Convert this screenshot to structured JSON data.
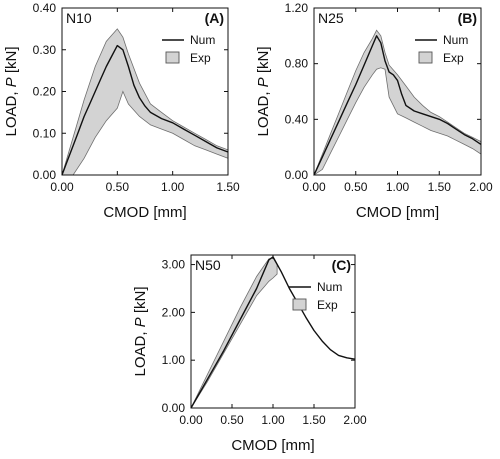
{
  "chart_data": [
    {
      "type": "line",
      "panel_label": "(A)",
      "specimen_label": "N10",
      "xlabel": "CMOD [mm]",
      "ylabel_prefix": "LOAD, ",
      "ylabel_symbol": "P",
      "ylabel_unit": " [kN]",
      "xlim": [
        0,
        1.5
      ],
      "ylim": [
        0,
        0.4
      ],
      "xticks": [
        0,
        0.5,
        1.0,
        1.5
      ],
      "xtick_labels": [
        "0.00",
        "0.50",
        "1.00",
        "1.50"
      ],
      "yticks": [
        0,
        0.1,
        0.2,
        0.3,
        0.4
      ],
      "ytick_labels": [
        "0.00",
        "0.10",
        "0.20",
        "0.30",
        "0.40"
      ],
      "legend": [
        "Num",
        "Exp"
      ],
      "legend_position": "top-right",
      "series": [
        {
          "name": "Num",
          "style": "line",
          "color": "#111111",
          "x": [
            0.0,
            0.05,
            0.1,
            0.15,
            0.2,
            0.25,
            0.3,
            0.35,
            0.4,
            0.45,
            0.5,
            0.55,
            0.6,
            0.65,
            0.7,
            0.75,
            0.8,
            0.9,
            1.0,
            1.1,
            1.2,
            1.3,
            1.4,
            1.5
          ],
          "y": [
            0.0,
            0.035,
            0.07,
            0.105,
            0.14,
            0.17,
            0.2,
            0.23,
            0.26,
            0.285,
            0.31,
            0.3,
            0.26,
            0.215,
            0.185,
            0.165,
            0.15,
            0.135,
            0.125,
            0.11,
            0.095,
            0.08,
            0.065,
            0.055
          ]
        },
        {
          "name": "Exp",
          "style": "band",
          "color": "#d3d3d3",
          "x": [
            0.0,
            0.1,
            0.2,
            0.3,
            0.4,
            0.5,
            0.55,
            0.6,
            0.7,
            0.8,
            0.9,
            1.0,
            1.1,
            1.2,
            1.3,
            1.4,
            1.5
          ],
          "upper": [
            0.0,
            0.09,
            0.18,
            0.26,
            0.32,
            0.35,
            0.33,
            0.29,
            0.22,
            0.17,
            0.15,
            0.13,
            0.115,
            0.1,
            0.085,
            0.07,
            0.06
          ],
          "lower": [
            0.0,
            0.0,
            0.04,
            0.09,
            0.13,
            0.16,
            0.2,
            0.17,
            0.14,
            0.12,
            0.11,
            0.1,
            0.085,
            0.07,
            0.06,
            0.05,
            0.04
          ]
        }
      ]
    },
    {
      "type": "line",
      "panel_label": "(B)",
      "specimen_label": "N25",
      "xlabel": "CMOD [mm]",
      "ylabel_prefix": "LOAD, ",
      "ylabel_symbol": "P",
      "ylabel_unit": " [kN]",
      "xlim": [
        0,
        2.0
      ],
      "ylim": [
        0,
        1.2
      ],
      "xticks": [
        0,
        0.5,
        1.0,
        1.5,
        2.0
      ],
      "xtick_labels": [
        "0.00",
        "0.50",
        "1.00",
        "1.50",
        "2.00"
      ],
      "yticks": [
        0,
        0.4,
        0.8,
        1.2
      ],
      "ytick_labels": [
        "0.00",
        "0.40",
        "0.80",
        "1.20"
      ],
      "legend": [
        "Num",
        "Exp"
      ],
      "legend_position": "top-right",
      "series": [
        {
          "name": "Num",
          "style": "line",
          "color": "#111111",
          "x": [
            0.0,
            0.1,
            0.2,
            0.3,
            0.4,
            0.5,
            0.6,
            0.7,
            0.75,
            0.8,
            0.85,
            0.9,
            0.95,
            1.0,
            1.05,
            1.1,
            1.2,
            1.3,
            1.4,
            1.5,
            1.6,
            1.7,
            1.8,
            1.9,
            2.0
          ],
          "y": [
            0.0,
            0.13,
            0.26,
            0.39,
            0.52,
            0.65,
            0.79,
            0.93,
            1.0,
            0.95,
            0.82,
            0.74,
            0.72,
            0.68,
            0.58,
            0.5,
            0.46,
            0.44,
            0.42,
            0.4,
            0.37,
            0.33,
            0.29,
            0.26,
            0.22
          ]
        },
        {
          "name": "Exp",
          "style": "band",
          "color": "#d3d3d3",
          "x": [
            0.0,
            0.1,
            0.2,
            0.3,
            0.4,
            0.5,
            0.6,
            0.7,
            0.75,
            0.8,
            0.85,
            0.9,
            1.0,
            1.1,
            1.2,
            1.3,
            1.4,
            1.5,
            1.6,
            1.7,
            1.8,
            1.9,
            2.0
          ],
          "upper": [
            0.0,
            0.15,
            0.3,
            0.45,
            0.6,
            0.75,
            0.88,
            0.98,
            1.04,
            1.0,
            0.88,
            0.79,
            0.72,
            0.64,
            0.56,
            0.5,
            0.45,
            0.42,
            0.38,
            0.34,
            0.3,
            0.27,
            0.24
          ],
          "lower": [
            0.0,
            0.04,
            0.16,
            0.28,
            0.4,
            0.52,
            0.63,
            0.72,
            0.76,
            0.77,
            0.76,
            0.56,
            0.44,
            0.41,
            0.38,
            0.35,
            0.32,
            0.3,
            0.28,
            0.25,
            0.22,
            0.19,
            0.15
          ]
        }
      ]
    },
    {
      "type": "line",
      "panel_label": "(C)",
      "specimen_label": "N50",
      "xlabel": "CMOD [mm]",
      "ylabel_prefix": "LOAD, ",
      "ylabel_symbol": "P",
      "ylabel_unit": " [kN]",
      "xlim": [
        0,
        2.0
      ],
      "ylim": [
        0,
        3.2
      ],
      "xticks": [
        0,
        0.5,
        1.0,
        1.5,
        2.0
      ],
      "xtick_labels": [
        "0.00",
        "0.50",
        "1.00",
        "1.50",
        "2.00"
      ],
      "yticks": [
        0,
        1.0,
        2.0,
        3.0
      ],
      "ytick_labels": [
        "0.00",
        "1.00",
        "2.00",
        "3.00"
      ],
      "legend": [
        "Num",
        "Exp"
      ],
      "legend_position": "top-right",
      "series": [
        {
          "name": "Num",
          "style": "line",
          "color": "#111111",
          "x": [
            0.0,
            0.2,
            0.4,
            0.6,
            0.8,
            0.95,
            1.0,
            1.1,
            1.2,
            1.3,
            1.4,
            1.5,
            1.6,
            1.7,
            1.8,
            1.9,
            2.0
          ],
          "y": [
            0.0,
            0.6,
            1.2,
            1.85,
            2.5,
            3.1,
            3.16,
            2.85,
            2.5,
            2.2,
            1.9,
            1.62,
            1.4,
            1.22,
            1.1,
            1.05,
            1.02
          ]
        },
        {
          "name": "Exp",
          "style": "band",
          "color": "#d3d3d3",
          "x": [
            0.0,
            0.2,
            0.4,
            0.6,
            0.8,
            0.9,
            0.95,
            1.0,
            1.05
          ],
          "upper": [
            0.0,
            0.7,
            1.4,
            2.1,
            2.75,
            3.0,
            3.12,
            3.14,
            3.0
          ],
          "lower": [
            0.0,
            0.55,
            1.15,
            1.75,
            2.35,
            2.55,
            2.65,
            2.72,
            2.8
          ]
        }
      ]
    }
  ]
}
